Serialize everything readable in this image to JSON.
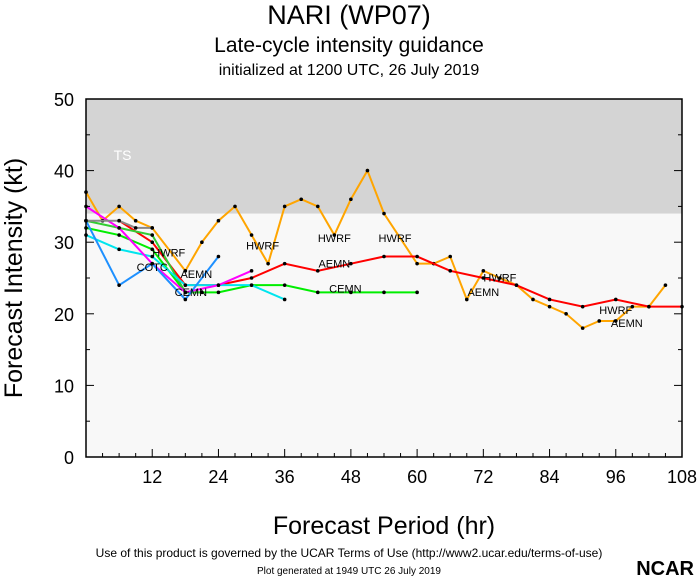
{
  "title": "NARI (WP07)",
  "subtitle": "Late-cycle intensity guidance",
  "init": "initialized at 1200 UTC, 26 July 2019",
  "footer": "Use of this product is governed by the UCAR Terms of Use (http://www2.ucar.edu/terms-of-use)",
  "generated": "Plot generated at 1949 UTC   26 July 2019",
  "logo": "NCAR",
  "chart_data": {
    "type": "line",
    "xlabel": "Forecast Period (hr)",
    "ylabel": "Forecast Intensity (kt)",
    "xlim": [
      0,
      108
    ],
    "ylim": [
      0,
      50
    ],
    "xticks": [
      12,
      24,
      36,
      48,
      60,
      72,
      84,
      96,
      108
    ],
    "yticks": [
      0,
      10,
      20,
      30,
      40,
      50
    ],
    "band": {
      "label": "TS",
      "from": 34,
      "to": 50,
      "color": "#d4d4d4"
    },
    "series": [
      {
        "name": "HWRF",
        "color": "#ffa500",
        "x": [
          0,
          3,
          6,
          9,
          12,
          18,
          21,
          24,
          27,
          30,
          33,
          36,
          39,
          42,
          45,
          48,
          51,
          54,
          60,
          63,
          66,
          69,
          72,
          75,
          78,
          81,
          84,
          87,
          90,
          93,
          96,
          99,
          102,
          105
        ],
        "y": [
          37,
          33,
          35,
          33,
          32,
          26,
          30,
          33,
          35,
          31,
          27,
          35,
          36,
          35,
          31,
          36,
          40,
          34,
          27,
          27,
          28,
          22,
          26,
          25,
          24,
          22,
          21,
          20,
          18,
          19,
          19,
          21,
          21,
          24
        ]
      },
      {
        "name": "AEMN",
        "color": "#ff0000",
        "x": [
          6,
          12,
          18,
          24,
          30,
          36,
          42,
          48,
          54,
          60,
          66,
          72,
          78,
          84,
          90,
          96,
          102,
          108
        ],
        "y": [
          33,
          30,
          24,
          24,
          25,
          27,
          26,
          27,
          28,
          28,
          26,
          25,
          24,
          22,
          21,
          22,
          21,
          21
        ]
      },
      {
        "name": "CEMN",
        "color": "#00ee00",
        "x": [
          0,
          6,
          12,
          18,
          24,
          30,
          36,
          42,
          48,
          54,
          60
        ],
        "y": [
          32,
          31,
          29,
          23,
          23,
          24,
          24,
          23,
          23,
          23,
          23
        ]
      },
      {
        "name": "",
        "color": "#33cc33",
        "x": [
          0,
          6,
          12,
          18,
          21
        ],
        "y": [
          33,
          32,
          31,
          23,
          23
        ]
      },
      {
        "name": "",
        "color": "#00e5ee",
        "x": [
          0,
          6,
          12,
          18,
          24,
          30,
          36
        ],
        "y": [
          31,
          29,
          28,
          24,
          24,
          24,
          22
        ]
      },
      {
        "name": "",
        "color": "#ff00ff",
        "x": [
          0,
          6,
          12,
          18,
          24,
          30
        ],
        "y": [
          35,
          32,
          27,
          23,
          24,
          26
        ]
      },
      {
        "name": "COTC",
        "color": "#1e90ff",
        "x": [
          0,
          6,
          12,
          18,
          24
        ],
        "y": [
          33,
          24,
          27,
          22,
          28
        ]
      },
      {
        "name": "",
        "color": "#888888",
        "x": [
          0,
          6,
          9,
          12
        ],
        "y": [
          33,
          33,
          32,
          32
        ]
      }
    ],
    "labels": [
      {
        "text": "HWRF",
        "x": 15,
        "y": 28
      },
      {
        "text": "HWRF",
        "x": 32,
        "y": 29
      },
      {
        "text": "HWRF",
        "x": 45,
        "y": 30
      },
      {
        "text": "HWRF",
        "x": 56,
        "y": 30
      },
      {
        "text": "HWRF",
        "x": 75,
        "y": 24.5
      },
      {
        "text": "HWRF",
        "x": 96,
        "y": 20
      },
      {
        "text": "AEMN",
        "x": 45,
        "y": 26.5
      },
      {
        "text": "AEMN",
        "x": 72,
        "y": 25
      },
      {
        "text": "AEMN",
        "x": 98,
        "y": 21.5
      },
      {
        "text": "AEMN",
        "x": 20,
        "y": 25
      },
      {
        "text": "CEMN",
        "x": 47,
        "y": 23
      },
      {
        "text": "CEMN",
        "x": 19,
        "y": 22.5
      },
      {
        "text": "COTC",
        "x": 12,
        "y": 26
      }
    ]
  }
}
